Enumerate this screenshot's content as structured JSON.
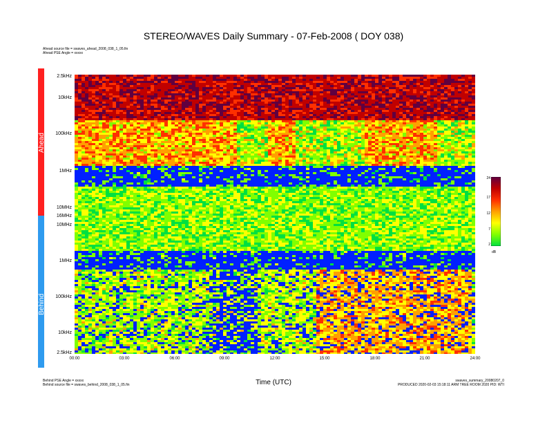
{
  "title": "STEREO/WAVES Daily Summary - 07-Feb-2008 ( DOY 038)",
  "header_left": {
    "line1": "Ahead source file = swaves_ahead_2008_038_1_05.fin",
    "line2": "Ahead PSE Angle = xxxxx"
  },
  "footer_left": {
    "line1": "Behind PSE Angle = xxxxx",
    "line2": "Behind source file = swaves_behind_2008_038_1_05.fin"
  },
  "footer_right": {
    "line1": "swaves_summary_20080207_0",
    "line2": "PRODUCED 2020-02-03 15:18:11 ARM TREE ROOM 2020 PID: WTI"
  },
  "colors": {
    "ahead_bar": "#ff2020",
    "behind_bar": "#2f9bef"
  },
  "chart_data": {
    "type": "heatmap",
    "title": "STEREO/WAVES Daily Summary - 07-Feb-2008 ( DOY 038)",
    "xlabel": "Time (UTC)",
    "x_ticks": [
      "00:00",
      "03:00",
      "06:00",
      "09:00",
      "12:00",
      "15:00",
      "18:00",
      "21:00",
      "24:00"
    ],
    "xlim": [
      "00:00",
      "24:00"
    ],
    "panels": [
      {
        "name": "Ahead",
        "y_ticks": [
          "2.5kHz",
          "10kHz",
          "100kHz",
          "1MHz",
          "10MHz",
          "16MHz"
        ],
        "y_scale": "log",
        "ylim": [
          "2.5kHz",
          "16MHz"
        ]
      },
      {
        "name": "Behind",
        "y_ticks": [
          "16MHz",
          "10MHz",
          "1MHz",
          "100kHz",
          "10kHz",
          "2.5kHz"
        ],
        "y_scale": "log",
        "ylim": [
          "2.5kHz",
          "16MHz"
        ]
      }
    ],
    "colorbar": {
      "label": "dB",
      "ticks": [
        24,
        17,
        12,
        7,
        2
      ],
      "range": [
        2,
        24
      ],
      "colors": [
        "#00e040",
        "#80ff00",
        "#ffff00",
        "#ffa000",
        "#ff3000",
        "#c00000",
        "#600040"
      ]
    },
    "background_color": "#0020ff"
  }
}
